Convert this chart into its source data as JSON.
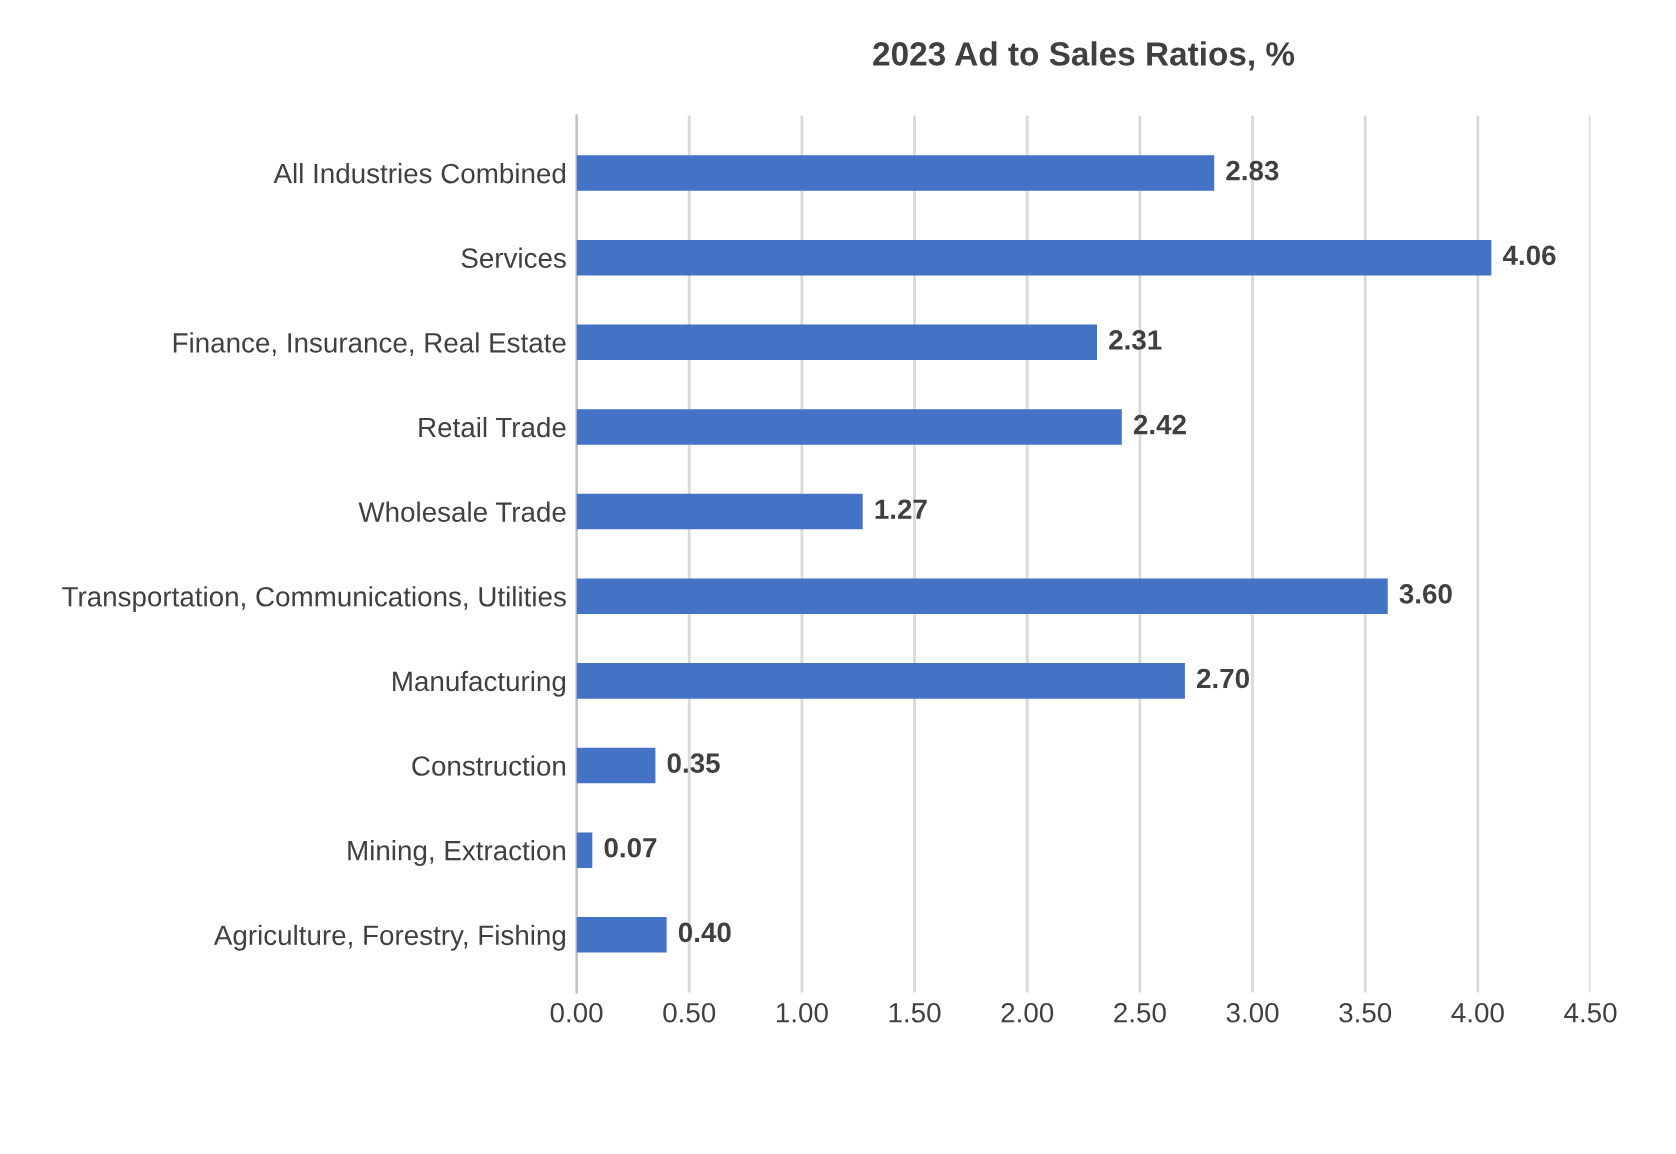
{
  "chart_data": {
    "type": "bar",
    "orientation": "horizontal",
    "title": "2023 Ad to Sales Ratios, %",
    "categories": [
      "All Industries Combined",
      "Services",
      "Finance, Insurance, Real Estate",
      "Retail Trade",
      "Wholesale Trade",
      "Transportation, Communications, Utilities",
      "Manufacturing",
      "Construction",
      "Mining, Extraction",
      "Agriculture, Forestry, Fishing"
    ],
    "values": [
      2.83,
      4.06,
      2.31,
      2.42,
      1.27,
      3.6,
      2.7,
      0.35,
      0.07,
      0.4
    ],
    "value_labels": [
      "2.83",
      "4.06",
      "2.31",
      "2.42",
      "1.27",
      "3.60",
      "2.70",
      "0.35",
      "0.07",
      "0.40"
    ],
    "color": "#4472c4",
    "xlim": [
      0,
      4.5
    ],
    "xticks": [
      {
        "value": 0,
        "label": "0.00"
      },
      {
        "value": 0.5,
        "label": "0.50"
      },
      {
        "value": 1,
        "label": "1.00"
      },
      {
        "value": 1.5,
        "label": "1.50"
      },
      {
        "value": 2,
        "label": "2.00"
      },
      {
        "value": 2.5,
        "label": "2.50"
      },
      {
        "value": 3,
        "label": "3.00"
      },
      {
        "value": 3.5,
        "label": "3.50"
      },
      {
        "value": 4,
        "label": "4.00"
      },
      {
        "value": 4.5,
        "label": "4.50"
      }
    ],
    "grid": "x",
    "legend": false
  }
}
